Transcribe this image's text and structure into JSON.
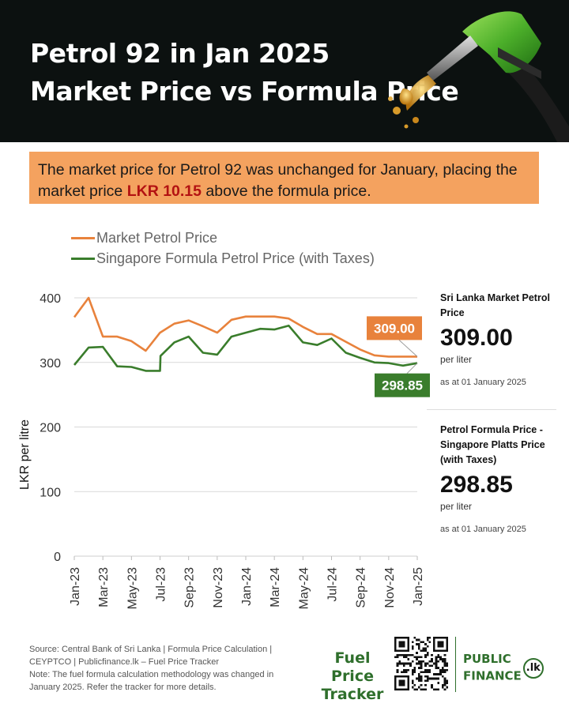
{
  "header": {
    "title_line1": "Petrol 92 in Jan 2025",
    "title_line2": "Market Price vs Formula Price"
  },
  "callout": {
    "text_before": "The market price for Petrol 92 was unchanged for January, placing the market price ",
    "highlight": "LKR 10.15",
    "text_after": " above the formula price."
  },
  "colors": {
    "market": "#e8823c",
    "formula": "#3a7d2c",
    "header_bg": "#0c1110",
    "callout_bg": "#f4a25f",
    "highlight": "#b31212",
    "brand": "#2f6f2c"
  },
  "chart_data": {
    "type": "line",
    "ylabel": "LKR per litre",
    "ylim": [
      0,
      400
    ],
    "yticks": [
      0,
      100,
      200,
      300,
      400
    ],
    "grid": true,
    "legend_position": "top-left",
    "x_range": [
      "2023-01",
      "2025-01"
    ],
    "xtick_labels": [
      "Jan-23",
      "Mar-23",
      "May-23",
      "Jul-23",
      "Sep-23",
      "Nov-23",
      "Jan-24",
      "Mar-24",
      "May-24",
      "Jul-24",
      "Sep-24",
      "Nov-24",
      "Jan-25"
    ],
    "series": [
      {
        "name": "Market Petrol Price",
        "color": "#e8823c",
        "points": [
          [
            "2023-01-01",
            370
          ],
          [
            "2023-02-01",
            400
          ],
          [
            "2023-03-01",
            340
          ],
          [
            "2023-04-01",
            340
          ],
          [
            "2023-05-01",
            333
          ],
          [
            "2023-06-01",
            318
          ],
          [
            "2023-07-01",
            346
          ],
          [
            "2023-08-01",
            360
          ],
          [
            "2023-09-01",
            365
          ],
          [
            "2023-10-01",
            356
          ],
          [
            "2023-11-01",
            346
          ],
          [
            "2023-12-01",
            366
          ],
          [
            "2024-01-01",
            371
          ],
          [
            "2024-02-01",
            371
          ],
          [
            "2024-03-01",
            371
          ],
          [
            "2024-04-01",
            368
          ],
          [
            "2024-05-01",
            355
          ],
          [
            "2024-06-01",
            344
          ],
          [
            "2024-07-01",
            344
          ],
          [
            "2024-08-01",
            332
          ],
          [
            "2024-09-01",
            320
          ],
          [
            "2024-10-01",
            311
          ],
          [
            "2024-11-01",
            309
          ],
          [
            "2024-12-01",
            309
          ],
          [
            "2025-01-01",
            309
          ]
        ]
      },
      {
        "name": "Singapore Formula Petrol Price (with Taxes)",
        "color": "#3a7d2c",
        "points": [
          [
            "2023-01-01",
            296
          ],
          [
            "2023-02-01",
            323
          ],
          [
            "2023-03-01",
            324
          ],
          [
            "2023-04-01",
            294
          ],
          [
            "2023-05-01",
            293
          ],
          [
            "2023-06-01",
            287
          ],
          [
            "2023-07-01",
            287
          ],
          [
            "2023-07-02",
            310
          ],
          [
            "2023-08-01",
            331
          ],
          [
            "2023-09-01",
            340
          ],
          [
            "2023-10-01",
            315
          ],
          [
            "2023-11-01",
            312
          ],
          [
            "2023-12-01",
            340
          ],
          [
            "2024-01-01",
            346
          ],
          [
            "2024-02-01",
            352
          ],
          [
            "2024-03-01",
            351
          ],
          [
            "2024-04-01",
            357
          ],
          [
            "2024-05-01",
            331
          ],
          [
            "2024-06-01",
            327
          ],
          [
            "2024-07-01",
            337
          ],
          [
            "2024-08-01",
            315
          ],
          [
            "2024-09-01",
            307
          ],
          [
            "2024-10-01",
            300
          ],
          [
            "2024-11-01",
            299
          ],
          [
            "2024-12-01",
            295
          ],
          [
            "2025-01-01",
            298.85
          ]
        ]
      }
    ],
    "end_labels": [
      {
        "series": "Market Petrol Price",
        "text": "309.00",
        "value": 309.0,
        "color": "#e8823c"
      },
      {
        "series": "Singapore Formula Petrol Price (with Taxes)",
        "text": "298.85",
        "value": 298.85,
        "color": "#3a7d2c"
      }
    ]
  },
  "side_panel": {
    "market": {
      "label": "Sri Lanka Market Petrol Price",
      "value": "309.00",
      "unit": "per liter",
      "as_at": "as at 01 January 2025"
    },
    "formula": {
      "label": "Petrol Formula Price - Singapore Platts Price (with Taxes)",
      "value": "298.85",
      "unit": "per liter",
      "as_at": "as at 01 January 2025"
    }
  },
  "footer": {
    "source": "Source: Central Bank of Sri Lanka | Formula Price Calculation | CEYPTCO | Publicfinance.lk – Fuel Price Tracker",
    "note": "Note: The fuel formula calculation methodology was changed in January 2025. Refer the tracker for more details.",
    "brand_tracker": "Fuel Price Tracker",
    "brand_public": "PUBLIC",
    "brand_finance": "FINANCE",
    "brand_lk": ".lk"
  },
  "icons": [
    "fuel-nozzle-icon",
    "qr-code-icon"
  ]
}
